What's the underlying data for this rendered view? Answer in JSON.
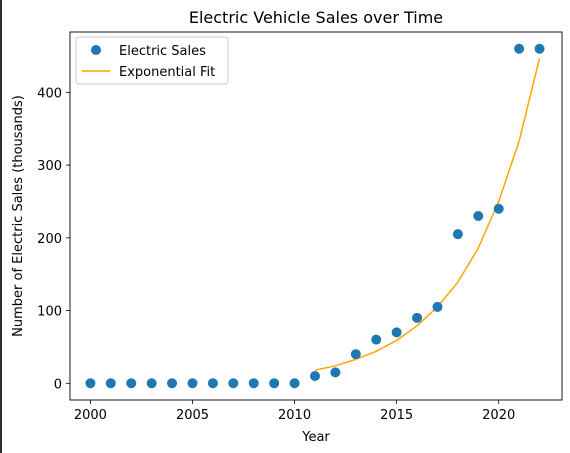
{
  "chart_data": {
    "type": "scatter",
    "title": "Electric Vehicle Sales over Time",
    "xlabel": "Year",
    "ylabel": "Number of Electric Sales (thousands)",
    "xlim": [
      1999,
      2023.1
    ],
    "ylim": [
      -23,
      483
    ],
    "xticks": [
      2000,
      2005,
      2010,
      2015,
      2020
    ],
    "yticks": [
      0,
      100,
      200,
      300,
      400
    ],
    "grid": false,
    "legend_position": "upper-left",
    "series": [
      {
        "name": "Electric Sales",
        "kind": "scatter",
        "color": "#1f77b4",
        "points": [
          {
            "x": 2000,
            "y": 0
          },
          {
            "x": 2001,
            "y": 0
          },
          {
            "x": 2002,
            "y": 0
          },
          {
            "x": 2003,
            "y": 0
          },
          {
            "x": 2004,
            "y": 0
          },
          {
            "x": 2005,
            "y": 0
          },
          {
            "x": 2006,
            "y": 0
          },
          {
            "x": 2007,
            "y": 0
          },
          {
            "x": 2008,
            "y": 0
          },
          {
            "x": 2009,
            "y": 0
          },
          {
            "x": 2010,
            "y": 0
          },
          {
            "x": 2011,
            "y": 10
          },
          {
            "x": 2012,
            "y": 15
          },
          {
            "x": 2013,
            "y": 40
          },
          {
            "x": 2014,
            "y": 60
          },
          {
            "x": 2015,
            "y": 70
          },
          {
            "x": 2016,
            "y": 90
          },
          {
            "x": 2017,
            "y": 105
          },
          {
            "x": 2018,
            "y": 205
          },
          {
            "x": 2019,
            "y": 230
          },
          {
            "x": 2020,
            "y": 240
          },
          {
            "x": 2021,
            "y": 460
          },
          {
            "x": 2022,
            "y": 460
          }
        ]
      },
      {
        "name": "Exponential Fit",
        "kind": "line",
        "color": "#ffa500",
        "points": [
          {
            "x": 2011,
            "y": 18
          },
          {
            "x": 2012,
            "y": 24
          },
          {
            "x": 2013,
            "y": 33
          },
          {
            "x": 2014,
            "y": 44
          },
          {
            "x": 2015,
            "y": 59
          },
          {
            "x": 2016,
            "y": 79
          },
          {
            "x": 2017,
            "y": 105
          },
          {
            "x": 2018,
            "y": 139
          },
          {
            "x": 2019,
            "y": 186
          },
          {
            "x": 2020,
            "y": 250
          },
          {
            "x": 2021,
            "y": 333
          },
          {
            "x": 2022,
            "y": 447
          }
        ]
      }
    ]
  }
}
